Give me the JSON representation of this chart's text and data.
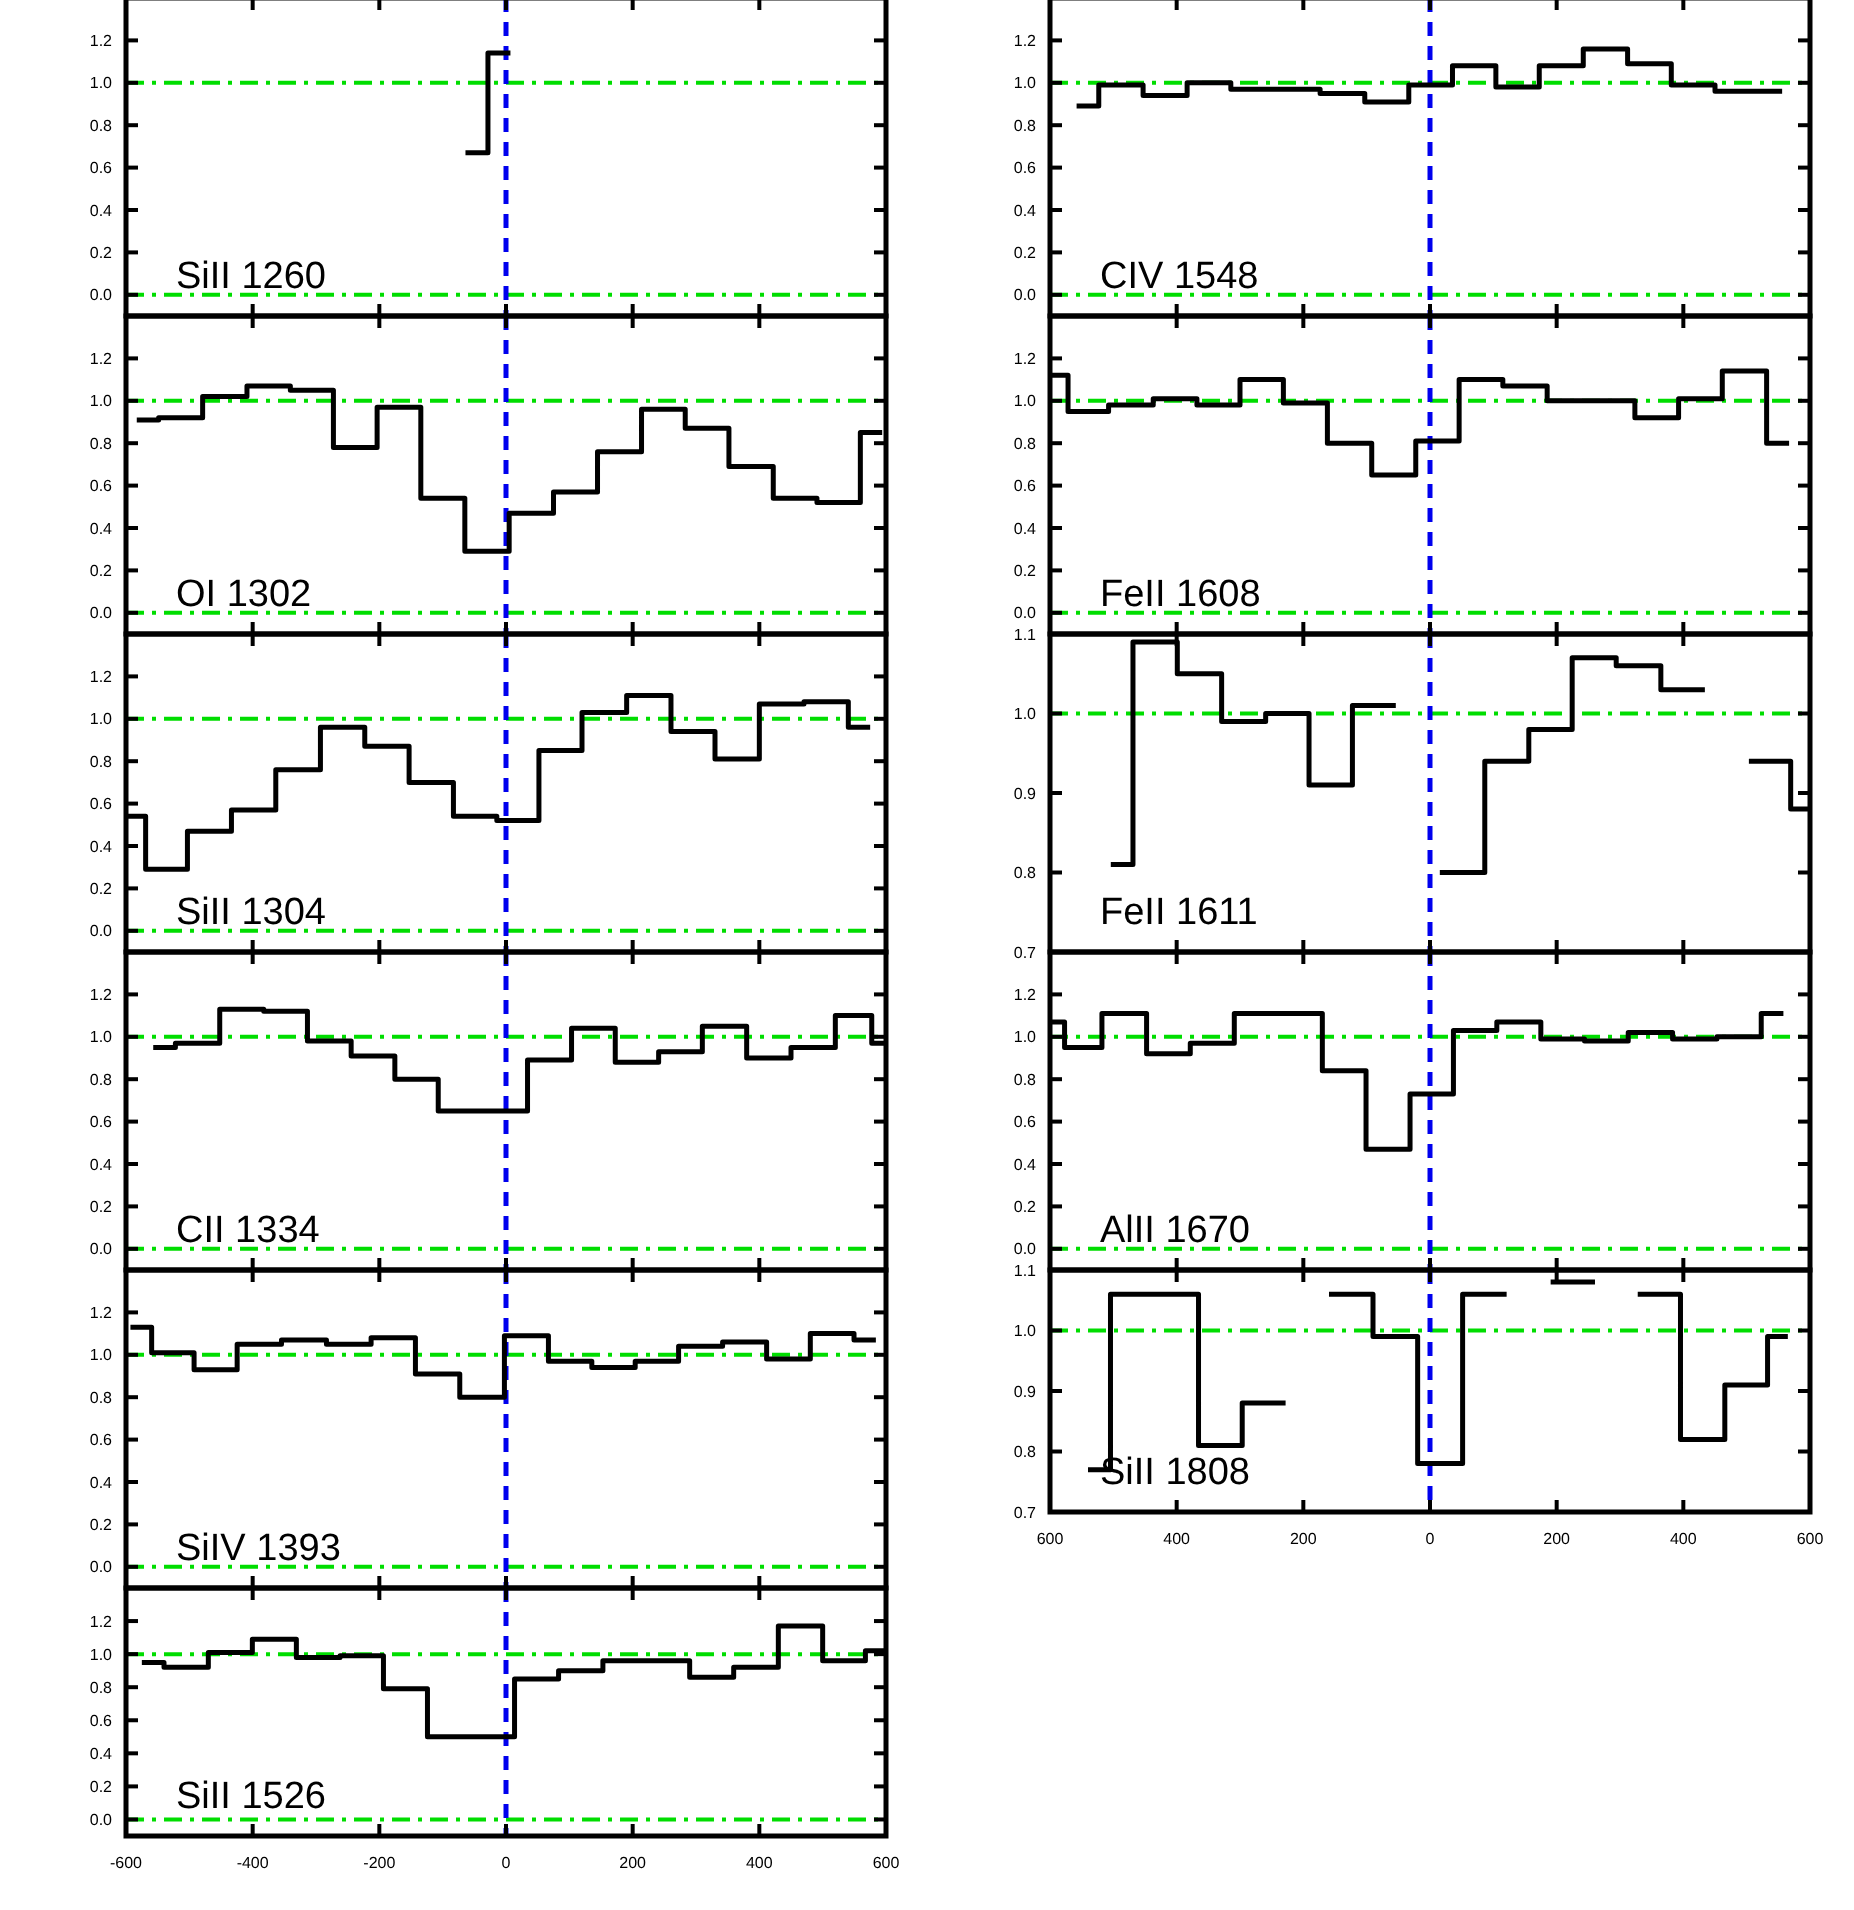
{
  "chart_data": [
    {
      "type": "step",
      "annotations": [
        "SiII 1260"
      ],
      "xlim": [
        -600,
        600
      ],
      "xticks": [
        -600,
        -400,
        -200,
        0,
        200,
        400,
        600
      ],
      "ylim": [
        -0.1,
        1.4
      ],
      "yticks": [
        {
          "value": 0,
          "label": "0.0"
        },
        {
          "value": 0.2,
          "label": "0.2"
        },
        {
          "value": 0.4,
          "label": "0.4"
        },
        {
          "value": 0.6,
          "label": "0.6"
        },
        {
          "value": 0.8,
          "label": "0.8"
        },
        {
          "value": 1,
          "label": "1.0"
        },
        {
          "value": 1.2,
          "label": "1.2"
        }
      ],
      "tick_labels": "y",
      "color": "#000000",
      "x": [
        -64,
        7
      ],
      "values": [
        0.67,
        1.14
      ],
      "ref_lines": [
        {
          "axis": "y",
          "value": 1,
          "color": "#00dd00",
          "line_style": "dashdot"
        },
        {
          "axis": "y",
          "value": 0,
          "color": "#00dd00",
          "line_style": "dashdot"
        },
        {
          "axis": "x",
          "value": 0,
          "color": "#0000ee",
          "line_style": "dashed"
        }
      ]
    },
    {
      "type": "step",
      "annotations": [
        "CIV 1548"
      ],
      "xlim": [
        -600,
        600
      ],
      "xticks": [
        -600,
        -400,
        -200,
        0,
        200,
        400,
        600
      ],
      "ylim": [
        -0.1,
        1.4
      ],
      "yticks": [
        {
          "value": 0,
          "label": "0.0"
        },
        {
          "value": 0.2,
          "label": "0.2"
        },
        {
          "value": 0.4,
          "label": "0.4"
        },
        {
          "value": 0.6,
          "label": "0.6"
        },
        {
          "value": 0.8,
          "label": "0.8"
        },
        {
          "value": 1,
          "label": "1.0"
        },
        {
          "value": 1.2,
          "label": "1.2"
        }
      ],
      "tick_labels": "y",
      "color": "#000000",
      "x": [
        -558,
        -488,
        -418,
        -349,
        -280,
        -209,
        -138,
        -68,
        1,
        70,
        138,
        207,
        277,
        347,
        415,
        485,
        556
      ],
      "values": [
        0.89,
        0.99,
        0.94,
        1.0,
        0.97,
        0.97,
        0.95,
        0.91,
        0.99,
        1.08,
        0.98,
        1.08,
        1.16,
        1.09,
        0.99,
        0.96,
        0.96
      ],
      "ref_lines": [
        {
          "axis": "y",
          "value": 1,
          "color": "#00dd00",
          "line_style": "dashdot"
        },
        {
          "axis": "y",
          "value": 0,
          "color": "#00dd00",
          "line_style": "dashdot"
        },
        {
          "axis": "x",
          "value": 0,
          "color": "#0000ee",
          "line_style": "dashed"
        }
      ]
    },
    {
      "type": "step",
      "annotations": [
        "OI 1302"
      ],
      "xlim": [
        -600,
        600
      ],
      "xticks": [
        -600,
        -400,
        -200,
        0,
        200,
        400,
        600
      ],
      "ylim": [
        -0.1,
        1.4
      ],
      "yticks": [
        {
          "value": 0,
          "label": "0.0"
        },
        {
          "value": 0.2,
          "label": "0.2"
        },
        {
          "value": 0.4,
          "label": "0.4"
        },
        {
          "value": 0.6,
          "label": "0.6"
        },
        {
          "value": 0.8,
          "label": "0.8"
        },
        {
          "value": 1,
          "label": "1.0"
        },
        {
          "value": 1.2,
          "label": "1.2"
        }
      ],
      "tick_labels": "y",
      "color": "#000000",
      "x": [
        -583,
        -514,
        -444,
        -374,
        -307,
        -238,
        -169,
        -100,
        -30,
        40,
        110,
        179,
        249,
        317,
        387,
        457,
        525,
        594
      ],
      "values": [
        0.91,
        0.92,
        1.02,
        1.07,
        1.05,
        0.78,
        0.97,
        0.54,
        0.29,
        0.47,
        0.57,
        0.76,
        0.96,
        0.87,
        0.69,
        0.54,
        0.52,
        0.85
      ],
      "ref_lines": [
        {
          "axis": "y",
          "value": 1,
          "color": "#00dd00",
          "line_style": "dashdot"
        },
        {
          "axis": "y",
          "value": 0,
          "color": "#00dd00",
          "line_style": "dashdot"
        },
        {
          "axis": "x",
          "value": 0,
          "color": "#0000ee",
          "line_style": "dashed"
        }
      ]
    },
    {
      "type": "step",
      "annotations": [
        "FeII 1608"
      ],
      "xlim": [
        -600,
        600
      ],
      "xticks": [
        -600,
        -400,
        -200,
        0,
        200,
        400,
        600
      ],
      "ylim": [
        -0.1,
        1.4
      ],
      "yticks": [
        {
          "value": 0,
          "label": "0.0"
        },
        {
          "value": 0.2,
          "label": "0.2"
        },
        {
          "value": 0.4,
          "label": "0.4"
        },
        {
          "value": 0.6,
          "label": "0.6"
        },
        {
          "value": 0.8,
          "label": "0.8"
        },
        {
          "value": 1,
          "label": "1.0"
        },
        {
          "value": 1.2,
          "label": "1.2"
        }
      ],
      "tick_labels": "y",
      "color": "#000000",
      "x": [
        -600,
        -543,
        -472,
        -402,
        -334,
        -266,
        -197,
        -127,
        -57,
        12,
        80,
        150,
        220,
        289,
        358,
        427,
        496,
        567
      ],
      "values": [
        1.12,
        0.95,
        0.98,
        1.01,
        0.98,
        1.1,
        0.99,
        0.8,
        0.65,
        0.81,
        1.1,
        1.07,
        1.0,
        1.0,
        0.92,
        1.01,
        1.14,
        0.8
      ],
      "ref_lines": [
        {
          "axis": "y",
          "value": 1,
          "color": "#00dd00",
          "line_style": "dashdot"
        },
        {
          "axis": "y",
          "value": 0,
          "color": "#00dd00",
          "line_style": "dashdot"
        },
        {
          "axis": "x",
          "value": 0,
          "color": "#0000ee",
          "line_style": "dashed"
        }
      ]
    },
    {
      "type": "step",
      "annotations": [
        "SiII 1304"
      ],
      "xlim": [
        -600,
        600
      ],
      "xticks": [
        -600,
        -400,
        -200,
        0,
        200,
        400,
        600
      ],
      "ylim": [
        -0.1,
        1.4
      ],
      "yticks": [
        {
          "value": 0,
          "label": "0.0"
        },
        {
          "value": 0.2,
          "label": "0.2"
        },
        {
          "value": 0.4,
          "label": "0.4"
        },
        {
          "value": 0.6,
          "label": "0.6"
        },
        {
          "value": 0.8,
          "label": "0.8"
        },
        {
          "value": 1,
          "label": "1.0"
        },
        {
          "value": 1.2,
          "label": "1.2"
        }
      ],
      "tick_labels": "y",
      "color": "#000000",
      "x": [
        -600,
        -538,
        -468,
        -399,
        -328,
        -258,
        -188,
        -118,
        -48,
        19,
        85,
        155,
        226,
        295,
        365,
        435,
        506,
        575
      ],
      "values": [
        0.54,
        0.29,
        0.47,
        0.57,
        0.76,
        0.96,
        0.87,
        0.7,
        0.54,
        0.52,
        0.85,
        1.03,
        1.11,
        0.94,
        0.81,
        1.07,
        1.08,
        0.96
      ],
      "ref_lines": [
        {
          "axis": "y",
          "value": 1,
          "color": "#00dd00",
          "line_style": "dashdot"
        },
        {
          "axis": "y",
          "value": 0,
          "color": "#00dd00",
          "line_style": "dashdot"
        },
        {
          "axis": "x",
          "value": 0,
          "color": "#0000ee",
          "line_style": "dashed"
        }
      ]
    },
    {
      "type": "step",
      "annotations": [
        "FeII 1611"
      ],
      "xlim": [
        -600,
        600
      ],
      "xticks": [
        -600,
        -400,
        -200,
        0,
        200,
        400,
        600
      ],
      "ylim": [
        0.7,
        1.1
      ],
      "yticks": [
        {
          "value": 0.7,
          "label": "0.7"
        },
        {
          "value": 0.8,
          "label": "0.8"
        },
        {
          "value": 0.9,
          "label": "0.9"
        },
        {
          "value": 1,
          "label": "1.0"
        },
        {
          "value": 1.1,
          "label": "1.1"
        }
      ],
      "tick_labels": "y",
      "color": "#000000",
      "x": [
        -504,
        -434,
        -364,
        -294,
        -225,
        -157,
        -88,
        -20,
        51,
        122,
        190,
        259,
        329,
        400,
        468,
        539,
        600
      ],
      "values": [
        0.81,
        1.09,
        1.05,
        0.99,
        1.0,
        0.91,
        1.01,
        null,
        0.8,
        0.94,
        0.98,
        1.07,
        1.06,
        1.03,
        null,
        0.94,
        0.88
      ],
      "ref_lines": [
        {
          "axis": "y",
          "value": 1,
          "color": "#00dd00",
          "line_style": "dashdot"
        },
        {
          "axis": "x",
          "value": 0,
          "color": "#0000ee",
          "line_style": "dashed"
        }
      ]
    },
    {
      "type": "step",
      "annotations": [
        "CII 1334"
      ],
      "xlim": [
        -600,
        600
      ],
      "xticks": [
        -600,
        -400,
        -200,
        0,
        200,
        400,
        600
      ],
      "ylim": [
        -0.1,
        1.4
      ],
      "yticks": [
        {
          "value": 0,
          "label": "0.0"
        },
        {
          "value": 0.2,
          "label": "0.2"
        },
        {
          "value": 0.4,
          "label": "0.4"
        },
        {
          "value": 0.6,
          "label": "0.6"
        },
        {
          "value": 0.8,
          "label": "0.8"
        },
        {
          "value": 1,
          "label": "1.0"
        },
        {
          "value": 1.2,
          "label": "1.2"
        }
      ],
      "tick_labels": "y",
      "color": "#000000",
      "x": [
        -557,
        -487,
        -417,
        -348,
        -279,
        -210,
        -141,
        -73,
        -1,
        69,
        138,
        207,
        275,
        345,
        415,
        485,
        555,
        600
      ],
      "values": [
        0.95,
        0.97,
        1.13,
        1.12,
        0.98,
        0.91,
        0.8,
        0.65,
        0.65,
        0.89,
        1.04,
        0.88,
        0.93,
        1.05,
        0.9,
        0.95,
        1.1,
        0.97
      ],
      "ref_lines": [
        {
          "axis": "y",
          "value": 1,
          "color": "#00dd00",
          "line_style": "dashdot"
        },
        {
          "axis": "y",
          "value": 0,
          "color": "#00dd00",
          "line_style": "dashdot"
        },
        {
          "axis": "x",
          "value": 0,
          "color": "#0000ee",
          "line_style": "dashed"
        }
      ]
    },
    {
      "type": "step",
      "annotations": [
        "AlII 1670"
      ],
      "xlim": [
        -600,
        600
      ],
      "xticks": [
        -600,
        -400,
        -200,
        0,
        200,
        400,
        600
      ],
      "ylim": [
        -0.1,
        1.4
      ],
      "yticks": [
        {
          "value": 0,
          "label": "0.0"
        },
        {
          "value": 0.2,
          "label": "0.2"
        },
        {
          "value": 0.4,
          "label": "0.4"
        },
        {
          "value": 0.6,
          "label": "0.6"
        },
        {
          "value": 0.8,
          "label": "0.8"
        },
        {
          "value": 1,
          "label": "1.0"
        },
        {
          "value": 1.2,
          "label": "1.2"
        }
      ],
      "tick_labels": "y",
      "color": "#000000",
      "x": [
        -600,
        -554,
        -482,
        -413,
        -344,
        -274,
        -204,
        -136,
        -66,
        3,
        71,
        140,
        210,
        278,
        348,
        418,
        488,
        558
      ],
      "values": [
        1.07,
        0.95,
        1.11,
        0.92,
        0.97,
        1.11,
        1.11,
        0.84,
        0.47,
        0.73,
        1.03,
        1.07,
        0.99,
        0.98,
        1.02,
        0.99,
        1.0,
        1.11
      ],
      "ref_lines": [
        {
          "axis": "y",
          "value": 1,
          "color": "#00dd00",
          "line_style": "dashdot"
        },
        {
          "axis": "y",
          "value": 0,
          "color": "#00dd00",
          "line_style": "dashdot"
        },
        {
          "axis": "x",
          "value": 0,
          "color": "#0000ee",
          "line_style": "dashed"
        }
      ]
    },
    {
      "type": "step",
      "annotations": [
        "SiIV 1393"
      ],
      "xlim": [
        -600,
        600
      ],
      "xticks": [
        -600,
        -400,
        -200,
        0,
        200,
        400,
        600
      ],
      "ylim": [
        -0.1,
        1.4
      ],
      "yticks": [
        {
          "value": 0,
          "label": "0.0"
        },
        {
          "value": 0.2,
          "label": "0.2"
        },
        {
          "value": 0.4,
          "label": "0.4"
        },
        {
          "value": 0.6,
          "label": "0.6"
        },
        {
          "value": 0.8,
          "label": "0.8"
        },
        {
          "value": 1,
          "label": "1.0"
        },
        {
          "value": 1.2,
          "label": "1.2"
        }
      ],
      "tick_labels": "y",
      "color": "#000000",
      "x": [
        -593,
        -526,
        -459,
        -390,
        -319,
        -248,
        -178,
        -108,
        -38,
        33,
        101,
        170,
        238,
        307,
        377,
        446,
        515,
        584
      ],
      "values": [
        1.13,
        1.01,
        0.93,
        1.05,
        1.07,
        1.05,
        1.08,
        0.91,
        0.8,
        1.09,
        0.97,
        0.94,
        0.97,
        1.04,
        1.06,
        0.98,
        1.1,
        1.07
      ],
      "ref_lines": [
        {
          "axis": "y",
          "value": 1,
          "color": "#00dd00",
          "line_style": "dashdot"
        },
        {
          "axis": "y",
          "value": 0,
          "color": "#00dd00",
          "line_style": "dashdot"
        },
        {
          "axis": "x",
          "value": 0,
          "color": "#0000ee",
          "line_style": "dashed"
        }
      ]
    },
    {
      "type": "step",
      "annotations": [
        "SiII 1808"
      ],
      "xlim": [
        -600,
        600
      ],
      "xticks": [
        {
          "value": -600,
          "label": "600"
        },
        {
          "value": -400,
          "label": "400"
        },
        {
          "value": -200,
          "label": "200"
        },
        {
          "value": 0,
          "label": "0"
        },
        {
          "value": 200,
          "label": "200"
        },
        {
          "value": 400,
          "label": "400"
        },
        {
          "value": 600,
          "label": "600"
        }
      ],
      "ylim": [
        0.7,
        1.1
      ],
      "yticks": [
        {
          "value": 0.7,
          "label": "0.7"
        },
        {
          "value": 0.8,
          "label": "0.8"
        },
        {
          "value": 0.9,
          "label": "0.9"
        },
        {
          "value": 1,
          "label": "1.0"
        },
        {
          "value": 1.1,
          "label": "1.1"
        }
      ],
      "color": "#000000",
      "x": [
        -540,
        -469,
        -400,
        -331,
        -262,
        -194,
        -125,
        -55,
        16,
        87,
        155,
        226,
        295,
        361,
        430,
        501,
        565
      ],
      "values": [
        0.77,
        1.06,
        1.06,
        0.81,
        0.88,
        null,
        1.06,
        0.99,
        0.78,
        1.06,
        null,
        1.08,
        null,
        1.06,
        0.82,
        0.91,
        0.99
      ],
      "ref_lines": [
        {
          "axis": "y",
          "value": 1,
          "color": "#00dd00",
          "line_style": "dashdot"
        },
        {
          "axis": "x",
          "value": 0,
          "color": "#0000ee",
          "line_style": "dashed"
        }
      ]
    },
    {
      "type": "step",
      "annotations": [
        "SiII 1526"
      ],
      "xlim": [
        -600,
        600
      ],
      "xticks": [
        -600,
        -400,
        -200,
        0,
        200,
        400,
        600
      ],
      "ylim": [
        -0.1,
        1.4
      ],
      "yticks": [
        {
          "value": 0,
          "label": "0.0"
        },
        {
          "value": 0.2,
          "label": "0.2"
        },
        {
          "value": 0.4,
          "label": "0.4"
        },
        {
          "value": 0.6,
          "label": "0.6"
        },
        {
          "value": 0.8,
          "label": "0.8"
        },
        {
          "value": 1,
          "label": "1.0"
        },
        {
          "value": 1.2,
          "label": "1.2"
        }
      ],
      "color": "#000000",
      "x": [
        -575,
        -505,
        -435,
        -366,
        -296,
        -228,
        -159,
        -89,
        -21,
        48,
        118,
        188,
        256,
        324,
        395,
        465,
        535,
        600
      ],
      "values": [
        0.95,
        0.92,
        1.01,
        1.09,
        0.98,
        0.99,
        0.79,
        0.5,
        0.5,
        0.85,
        0.9,
        0.96,
        0.96,
        0.86,
        0.92,
        1.17,
        0.96,
        1.02
      ],
      "ref_lines": [
        {
          "axis": "y",
          "value": 1,
          "color": "#00dd00",
          "line_style": "dashdot"
        },
        {
          "axis": "y",
          "value": 0,
          "color": "#00dd00",
          "line_style": "dashdot"
        },
        {
          "axis": "x",
          "value": 0,
          "color": "#0000ee",
          "line_style": "dashed"
        }
      ]
    }
  ]
}
